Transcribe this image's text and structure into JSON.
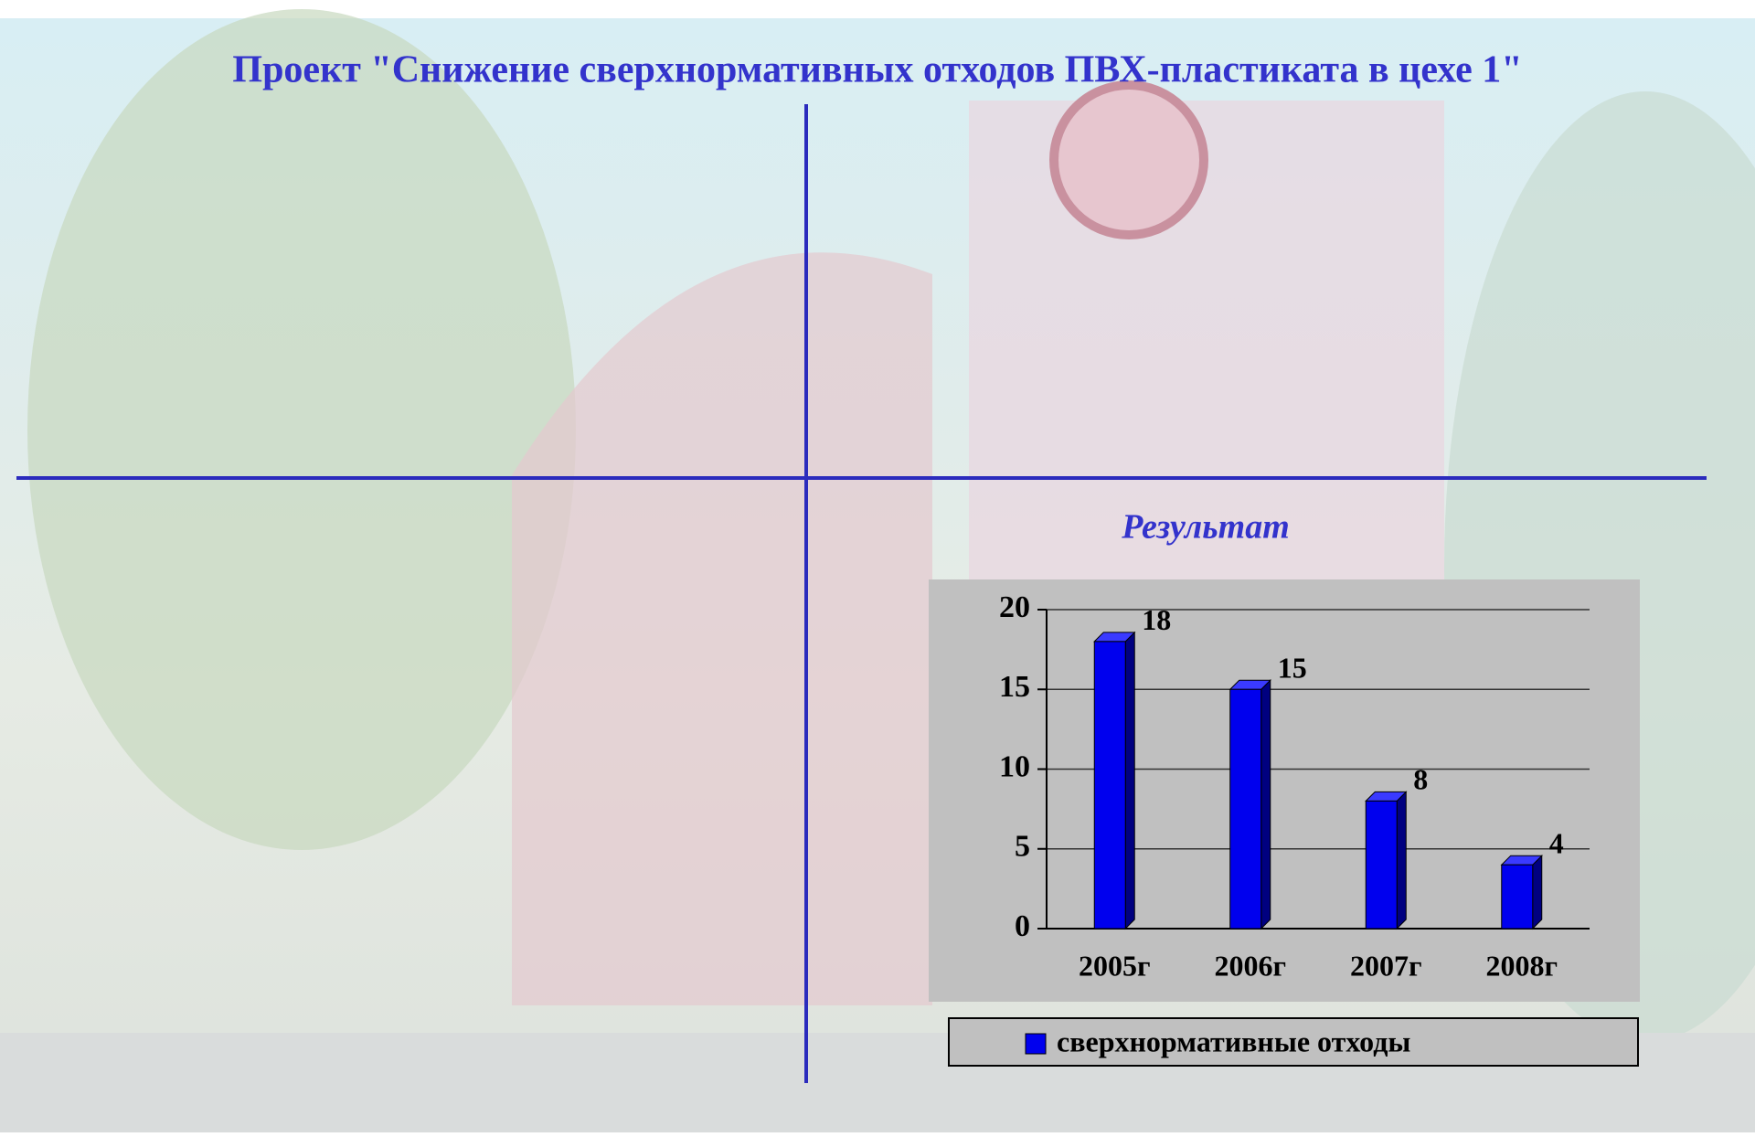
{
  "slide_title": "Проект \"Снижение сверхнормативных отходов ПВХ-пластиката в цехе 1\"",
  "chart_data": {
    "type": "bar",
    "title": "Результат",
    "categories": [
      "2005г",
      "2006г",
      "2007г",
      "2008г"
    ],
    "series": [
      {
        "name": "сверхнормативные отходы",
        "color": "#0000ee",
        "values": [
          18,
          15,
          8,
          4
        ]
      }
    ],
    "ylim": [
      0,
      20
    ],
    "yticks": [
      0,
      5,
      10,
      15,
      20
    ],
    "grid": true,
    "legend": "bottom"
  }
}
